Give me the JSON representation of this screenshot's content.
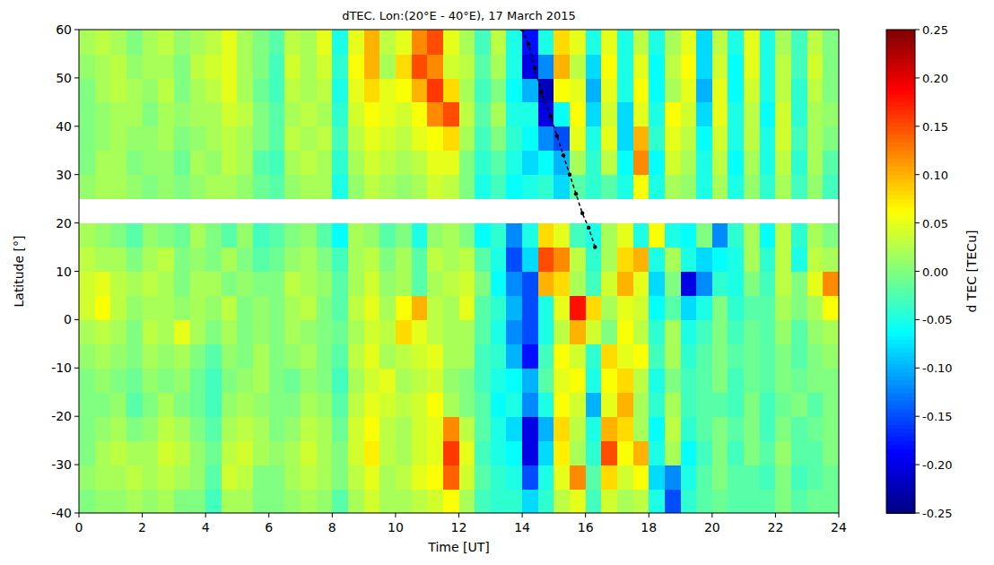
{
  "chart_data": {
    "type": "heatmap",
    "title": "dTEC. Lon:(20°E - 40°E), 17 March 2015",
    "x_label": "Time [UT]",
    "y_label": "Latitude [°]",
    "xlim": [
      0,
      24
    ],
    "xticks": [
      0,
      2,
      4,
      6,
      8,
      10,
      12,
      14,
      16,
      18,
      20,
      22,
      24
    ],
    "ylim": [
      -40,
      60
    ],
    "yticks": [
      -40,
      -30,
      -20,
      -10,
      0,
      10,
      20,
      30,
      40,
      50,
      60
    ],
    "x_edges": [
      0,
      0.5,
      1,
      1.5,
      2,
      2.5,
      3,
      3.5,
      4,
      4.5,
      5,
      5.5,
      6,
      6.5,
      7,
      7.5,
      8,
      8.5,
      9,
      9.5,
      10,
      10.5,
      11,
      11.5,
      12,
      12.5,
      13,
      13.5,
      14,
      14.5,
      15,
      15.5,
      16,
      16.5,
      17,
      17.5,
      18,
      18.5,
      19,
      19.5,
      20,
      20.5,
      21,
      21.5,
      22,
      22.5,
      23,
      23.5,
      24
    ],
    "y_edges": [
      -40,
      -35,
      -30,
      -25,
      -20,
      -15,
      -10,
      -5,
      0,
      5,
      10,
      15,
      20,
      25,
      30,
      35,
      40,
      45,
      50,
      55,
      60
    ],
    "values": [
      [
        0.0,
        0.01,
        0.01,
        0.02,
        0.01,
        0.02,
        0.0,
        0.0,
        -0.03,
        0.02,
        0.02,
        0.0,
        0.0,
        0.01,
        0.02,
        0.01,
        -0.02,
        0.02,
        0.04,
        0.02,
        0.02,
        0.03,
        0.04,
        0.06,
        0.02,
        -0.03,
        -0.04,
        -0.04,
        -0.08,
        -0.04,
        0.03,
        0.05,
        -0.03,
        0.04,
        0.02,
        0.03,
        -0.05,
        -0.15,
        -0.04,
        -0.02,
        -0.01,
        -0.02,
        -0.02,
        -0.02,
        0.0,
        -0.02,
        -0.01,
        -0.01
      ],
      [
        0.01,
        0.02,
        0.02,
        0.03,
        0.02,
        0.03,
        0.02,
        0.01,
        -0.02,
        0.04,
        0.03,
        0.0,
        0.0,
        0.02,
        0.03,
        0.02,
        0.0,
        0.03,
        0.05,
        0.02,
        0.03,
        0.05,
        0.06,
        0.14,
        0.04,
        -0.02,
        -0.04,
        -0.05,
        -0.15,
        -0.05,
        0.05,
        0.12,
        -0.02,
        0.08,
        0.04,
        0.06,
        -0.08,
        -0.12,
        -0.05,
        -0.02,
        0.0,
        -0.02,
        -0.02,
        -0.03,
        0.0,
        -0.03,
        -0.02,
        -0.01
      ],
      [
        0.0,
        0.02,
        0.03,
        0.02,
        0.02,
        0.04,
        0.03,
        0.01,
        -0.01,
        0.03,
        0.04,
        0.02,
        0.01,
        0.02,
        0.04,
        0.02,
        0.0,
        0.04,
        0.07,
        0.03,
        0.02,
        0.04,
        0.05,
        0.16,
        0.05,
        -0.03,
        -0.05,
        -0.06,
        -0.2,
        -0.08,
        0.07,
        0.02,
        -0.04,
        0.15,
        0.06,
        0.1,
        -0.05,
        0.02,
        -0.06,
        -0.03,
        0.0,
        -0.03,
        0.0,
        -0.02,
        0.01,
        -0.02,
        -0.02,
        0.0
      ],
      [
        0.0,
        0.01,
        0.02,
        0.0,
        0.01,
        0.03,
        0.02,
        0.0,
        -0.02,
        0.02,
        0.03,
        0.02,
        0.0,
        0.01,
        0.03,
        0.02,
        -0.01,
        0.04,
        0.06,
        0.03,
        0.02,
        0.04,
        0.05,
        0.12,
        0.03,
        -0.02,
        -0.05,
        -0.08,
        -0.2,
        -0.1,
        0.08,
        0.03,
        -0.05,
        0.1,
        0.08,
        0.02,
        -0.06,
        0.03,
        -0.04,
        -0.02,
        0.0,
        -0.02,
        0.0,
        -0.03,
        0.0,
        -0.02,
        -0.01,
        0.0
      ],
      [
        0.0,
        0.0,
        0.01,
        -0.02,
        0.0,
        0.02,
        0.0,
        -0.01,
        -0.03,
        0.01,
        0.02,
        0.01,
        0.0,
        0.0,
        0.02,
        0.01,
        -0.02,
        0.03,
        0.05,
        0.04,
        0.03,
        0.04,
        0.06,
        0.02,
        0.0,
        -0.02,
        -0.06,
        -0.05,
        -0.12,
        -0.05,
        0.06,
        0.04,
        -0.1,
        0.05,
        0.1,
        0.02,
        -0.04,
        0.02,
        -0.03,
        -0.02,
        -0.02,
        -0.03,
        0.0,
        -0.03,
        -0.01,
        0.0,
        -0.02,
        0.0
      ],
      [
        0.0,
        0.01,
        0.0,
        -0.01,
        0.01,
        0.0,
        0.01,
        -0.01,
        -0.03,
        0.0,
        0.01,
        0.02,
        0.0,
        -0.01,
        0.01,
        0.0,
        -0.03,
        0.02,
        0.04,
        0.05,
        0.02,
        0.03,
        0.04,
        0.01,
        0.0,
        -0.03,
        -0.05,
        -0.06,
        -0.1,
        -0.02,
        0.05,
        0.06,
        -0.05,
        0.06,
        0.08,
        0.03,
        -0.05,
        0.0,
        -0.03,
        -0.02,
        0.0,
        -0.03,
        -0.01,
        -0.02,
        0.0,
        -0.01,
        0.0,
        0.0
      ],
      [
        0.01,
        0.02,
        0.01,
        0.0,
        0.02,
        0.01,
        0.02,
        0.0,
        -0.02,
        0.01,
        0.0,
        0.02,
        0.0,
        0.01,
        0.02,
        0.0,
        -0.02,
        0.03,
        0.05,
        0.02,
        0.03,
        0.04,
        0.05,
        0.02,
        0.02,
        -0.03,
        -0.04,
        -0.1,
        -0.18,
        -0.03,
        0.06,
        0.04,
        -0.04,
        0.08,
        0.05,
        0.06,
        -0.03,
        0.02,
        -0.04,
        -0.02,
        0.0,
        -0.02,
        -0.01,
        -0.02,
        0.0,
        -0.02,
        0.0,
        0.01
      ],
      [
        0.02,
        0.03,
        0.02,
        0.0,
        0.03,
        0.02,
        0.05,
        0.02,
        0.0,
        0.02,
        0.0,
        0.01,
        0.0,
        0.02,
        0.01,
        0.0,
        -0.01,
        0.02,
        0.04,
        0.03,
        0.08,
        0.05,
        0.03,
        0.02,
        0.02,
        -0.02,
        -0.05,
        -0.12,
        -0.15,
        -0.05,
        0.03,
        0.1,
        0.04,
        0.0,
        0.06,
        0.03,
        -0.04,
        0.02,
        -0.05,
        -0.03,
        0.0,
        -0.03,
        -0.01,
        -0.02,
        0.01,
        -0.02,
        0.01,
        0.02
      ],
      [
        0.04,
        0.06,
        0.03,
        0.01,
        0.02,
        0.02,
        0.01,
        0.02,
        0.01,
        0.03,
        0.0,
        0.01,
        0.0,
        0.02,
        0.03,
        0.0,
        -0.02,
        0.03,
        0.05,
        0.02,
        0.06,
        0.1,
        0.03,
        0.02,
        0.05,
        -0.02,
        -0.04,
        -0.1,
        -0.15,
        -0.05,
        0.05,
        0.18,
        0.08,
        0.02,
        0.05,
        0.04,
        -0.06,
        -0.02,
        -0.08,
        -0.05,
        0.0,
        -0.04,
        -0.02,
        -0.02,
        0.02,
        0.0,
        0.02,
        0.06
      ],
      [
        0.04,
        0.05,
        0.03,
        0.02,
        0.03,
        0.02,
        0.0,
        0.02,
        0.02,
        0.0,
        0.01,
        0.0,
        0.0,
        0.03,
        0.02,
        0.01,
        -0.02,
        0.02,
        0.04,
        0.01,
        0.02,
        -0.02,
        0.02,
        0.03,
        0.04,
        0.0,
        -0.06,
        -0.12,
        -0.15,
        0.1,
        0.08,
        0.02,
        -0.03,
        0.04,
        0.1,
        0.05,
        -0.08,
        0.0,
        -0.2,
        -0.12,
        -0.04,
        -0.05,
        0.0,
        -0.03,
        0.03,
        0.0,
        0.05,
        0.12
      ],
      [
        0.03,
        0.02,
        0.02,
        0.0,
        0.02,
        0.03,
        0.0,
        0.01,
        0.0,
        0.02,
        0.0,
        -0.02,
        -0.01,
        0.01,
        0.02,
        0.0,
        -0.03,
        0.02,
        0.03,
        0.0,
        0.02,
        -0.02,
        0.03,
        0.02,
        0.03,
        -0.02,
        -0.05,
        -0.15,
        -0.08,
        0.15,
        0.12,
        0.03,
        -0.04,
        0.02,
        0.08,
        0.1,
        -0.05,
        0.02,
        -0.05,
        -0.08,
        -0.06,
        -0.05,
        0.02,
        -0.04,
        0.03,
        -0.05,
        0.03,
        0.02
      ],
      [
        0.02,
        0.01,
        0.0,
        -0.02,
        0.01,
        0.0,
        -0.01,
        0.02,
        0.0,
        -0.02,
        0.01,
        -0.03,
        -0.02,
        0.0,
        0.01,
        -0.02,
        -0.06,
        0.02,
        0.01,
        -0.02,
        0.0,
        -0.05,
        0.01,
        0.02,
        0.0,
        -0.06,
        -0.04,
        -0.12,
        -0.05,
        0.08,
        0.05,
        -0.03,
        -0.05,
        0.02,
        0.05,
        -0.05,
        0.06,
        -0.05,
        -0.06,
        0.0,
        -0.12,
        -0.04,
        0.02,
        -0.06,
        0.03,
        -0.04,
        0.02,
        0.0
      ],
      [
        null,
        null,
        null,
        null,
        null,
        null,
        null,
        null,
        null,
        null,
        null,
        null,
        null,
        null,
        null,
        null,
        null,
        null,
        null,
        null,
        null,
        null,
        null,
        null,
        null,
        null,
        null,
        null,
        null,
        null,
        null,
        null,
        null,
        null,
        null,
        null,
        null,
        null,
        null,
        null,
        null,
        null,
        null,
        null,
        null,
        null,
        null,
        null
      ],
      [
        0.01,
        0.02,
        0.02,
        0.01,
        0.0,
        0.01,
        0.0,
        0.01,
        0.02,
        0.02,
        0.01,
        -0.01,
        -0.02,
        0.01,
        0.02,
        0.02,
        -0.05,
        0.01,
        0.03,
        0.02,
        0.01,
        0.02,
        0.04,
        0.03,
        0.0,
        -0.05,
        -0.03,
        -0.06,
        -0.05,
        -0.04,
        -0.08,
        -0.02,
        -0.04,
        -0.02,
        -0.05,
        0.06,
        -0.05,
        0.02,
        0.01,
        -0.05,
        0.02,
        -0.05,
        0.01,
        -0.04,
        0.02,
        -0.03,
        0.01,
        -0.03
      ],
      [
        0.0,
        0.02,
        0.02,
        0.0,
        0.01,
        0.01,
        -0.01,
        0.02,
        0.01,
        0.03,
        0.02,
        -0.02,
        -0.03,
        0.02,
        0.03,
        0.02,
        -0.04,
        0.02,
        0.04,
        0.03,
        0.02,
        0.03,
        0.05,
        0.05,
        0.0,
        -0.04,
        -0.02,
        -0.05,
        -0.08,
        -0.06,
        -0.1,
        0.02,
        -0.04,
        0.03,
        -0.06,
        0.12,
        -0.06,
        0.04,
        0.02,
        -0.05,
        0.03,
        -0.06,
        0.02,
        -0.05,
        0.03,
        -0.04,
        0.02,
        -0.02
      ],
      [
        0.0,
        0.01,
        0.02,
        0.01,
        0.01,
        0.02,
        0.0,
        0.01,
        0.02,
        0.03,
        0.02,
        0.0,
        -0.02,
        0.03,
        0.02,
        0.03,
        -0.03,
        0.03,
        0.05,
        0.04,
        0.03,
        0.05,
        0.06,
        0.08,
        0.02,
        -0.03,
        0.0,
        -0.04,
        -0.06,
        -0.12,
        -0.15,
        0.05,
        -0.05,
        0.05,
        -0.08,
        0.1,
        -0.04,
        0.05,
        0.03,
        -0.06,
        0.04,
        -0.05,
        0.03,
        -0.05,
        0.04,
        -0.03,
        0.02,
        0.0
      ],
      [
        0.0,
        0.01,
        0.02,
        0.02,
        0.0,
        0.02,
        0.01,
        0.02,
        0.02,
        0.04,
        0.03,
        0.0,
        -0.02,
        0.02,
        0.03,
        0.02,
        -0.04,
        0.04,
        0.06,
        0.05,
        0.04,
        0.06,
        0.12,
        0.15,
        0.03,
        -0.02,
        0.02,
        -0.05,
        -0.05,
        -0.2,
        -0.06,
        0.06,
        -0.08,
        0.04,
        -0.08,
        0.05,
        -0.05,
        0.06,
        0.04,
        -0.08,
        0.05,
        -0.05,
        0.03,
        -0.06,
        0.04,
        -0.04,
        0.02,
        0.01
      ],
      [
        0.0,
        0.02,
        0.03,
        0.02,
        0.01,
        0.03,
        0.0,
        0.02,
        0.03,
        0.05,
        0.02,
        -0.01,
        -0.03,
        0.03,
        0.02,
        0.03,
        -0.05,
        0.05,
        0.08,
        0.05,
        0.06,
        0.1,
        0.16,
        0.08,
        0.02,
        -0.03,
        0.0,
        -0.06,
        -0.1,
        -0.22,
        0.06,
        0.05,
        -0.1,
        0.05,
        -0.05,
        0.06,
        -0.06,
        0.02,
        0.05,
        -0.1,
        0.05,
        -0.06,
        0.04,
        -0.05,
        0.03,
        -0.04,
        0.03,
        0.0
      ],
      [
        0.01,
        0.02,
        0.03,
        0.01,
        0.02,
        0.02,
        0.0,
        0.03,
        0.04,
        0.05,
        0.02,
        0.0,
        -0.03,
        0.04,
        0.02,
        0.04,
        -0.04,
        0.06,
        0.1,
        0.02,
        0.08,
        0.15,
        0.12,
        0.04,
        0.03,
        -0.02,
        0.02,
        -0.05,
        -0.2,
        -0.12,
        0.1,
        0.03,
        -0.08,
        0.06,
        -0.05,
        0.05,
        -0.06,
        0.03,
        0.06,
        -0.08,
        0.04,
        -0.06,
        0.05,
        -0.05,
        0.03,
        -0.03,
        0.04,
        0.0
      ],
      [
        0.02,
        0.03,
        0.02,
        0.0,
        0.02,
        0.03,
        0.01,
        0.02,
        0.03,
        0.05,
        0.02,
        0.0,
        -0.02,
        0.03,
        0.02,
        0.05,
        -0.05,
        0.05,
        0.1,
        0.03,
        0.05,
        0.12,
        0.15,
        0.05,
        0.02,
        -0.03,
        0.03,
        -0.05,
        -0.18,
        -0.05,
        0.08,
        0.05,
        -0.05,
        0.05,
        -0.05,
        0.03,
        -0.05,
        0.02,
        0.05,
        -0.08,
        0.03,
        -0.05,
        0.05,
        -0.05,
        0.02,
        -0.03,
        0.03,
        0.0
      ]
    ],
    "colorbar": {
      "label": "d TEC [TECu]",
      "range": [
        -0.25,
        0.25
      ],
      "ticks": [
        -0.25,
        {
          "value": -0.2,
          "label": "-0.20"
        },
        -0.15,
        {
          "value": -0.1,
          "label": "-0.10"
        },
        -0.05,
        {
          "value": 0,
          "label": "0.00"
        },
        0.05,
        {
          "value": 0.1,
          "label": "0.10"
        },
        0.15,
        {
          "value": 0.2,
          "label": "0.20"
        },
        0.25
      ]
    },
    "series": [
      {
        "type": "scatter",
        "color": "#000000",
        "marker": "dot",
        "line_style": "dashed",
        "x": [
          14.0,
          14.2,
          14.4,
          14.6,
          14.9,
          15.1,
          15.3,
          15.5,
          15.7,
          15.9,
          16.1,
          16.3
        ],
        "y": [
          60,
          57,
          52,
          47,
          42,
          38,
          34,
          30,
          26,
          22,
          19,
          15
        ]
      }
    ]
  }
}
